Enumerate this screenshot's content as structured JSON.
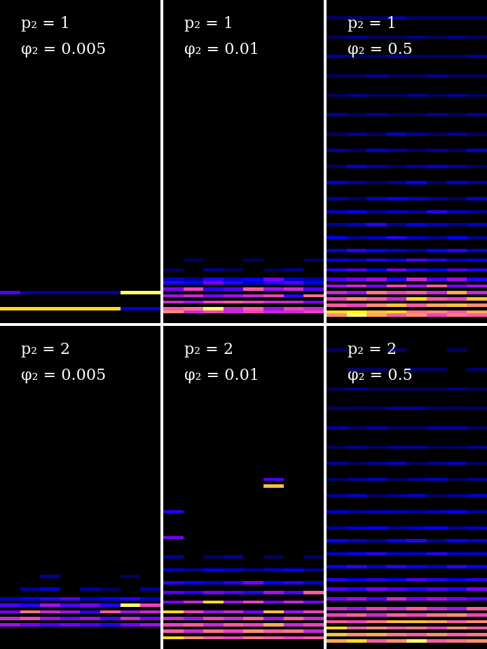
{
  "chart_data": [
    {
      "type": "heatmap",
      "annotations": [
        "p₂ = 1",
        "φ₂ = 0.005"
      ],
      "columns": 8,
      "rows": 100,
      "color_range": [
        0,
        1
      ],
      "tick_labels": false,
      "cells": [
        {
          "row": 4,
          "values": [
            0.85,
            0.85,
            0.85,
            0.85,
            0.85,
            0.85,
            0.2,
            0.2
          ]
        },
        {
          "row": 9,
          "values": [
            0.35,
            0.15,
            0.15,
            0.15,
            0.15,
            0.15,
            0.95,
            0.95
          ]
        }
      ]
    },
    {
      "type": "heatmap",
      "annotations": [
        "p₂ = 1",
        "φ₂ = 0.01"
      ],
      "columns": 8,
      "rows": 100,
      "color_range": [
        0,
        1
      ],
      "tick_labels": false,
      "cells": [
        {
          "row": 3,
          "values": [
            0.7,
            0.5,
            0.55,
            0.5,
            0.55,
            0.5,
            0.5,
            0.55
          ]
        },
        {
          "row": 4,
          "values": [
            0.6,
            0.65,
            0.95,
            0.5,
            0.6,
            0.45,
            0.55,
            0.5
          ]
        },
        {
          "row": 6,
          "values": [
            0.5,
            0.45,
            0.55,
            0.6,
            0.55,
            0.5,
            0.5,
            0.4
          ]
        },
        {
          "row": 8,
          "values": [
            0.45,
            0.5,
            0.4,
            0.45,
            0.5,
            0.55,
            0.3,
            0.65
          ]
        },
        {
          "row": 10,
          "values": [
            0.4,
            0.55,
            0.3,
            0.35,
            0.6,
            0.45,
            0.5,
            0.35
          ]
        },
        {
          "row": 12,
          "values": [
            0.3,
            0.25,
            0.4,
            0.3,
            0.2,
            0.3,
            0.35,
            0.25
          ]
        },
        {
          "row": 13,
          "values": [
            0.2,
            0.15,
            0.3,
            0.2,
            0.25,
            0.4,
            0.2,
            0.15
          ]
        },
        {
          "row": 16,
          "values": [
            0.1,
            0.0,
            0.15,
            0.1,
            0.0,
            0.1,
            0.15,
            0.0
          ]
        },
        {
          "row": 19,
          "values": [
            0.0,
            0.1,
            0.0,
            0.0,
            0.1,
            0.0,
            0.0,
            0.1
          ]
        }
      ]
    },
    {
      "type": "heatmap",
      "annotations": [
        "p₂ = 1",
        "φ₂ = 0.5"
      ],
      "columns": 8,
      "rows": 100,
      "color_range": [
        0,
        1
      ],
      "tick_labels": false,
      "cells": [
        {
          "row": 2,
          "values": [
            0.7,
            0.95,
            0.75,
            0.6,
            0.7,
            0.55,
            0.65,
            0.6
          ]
        },
        {
          "row": 3,
          "values": [
            0.85,
            0.9,
            0.8,
            0.85,
            0.65,
            0.7,
            0.6,
            0.75
          ]
        },
        {
          "row": 5,
          "values": [
            0.6,
            0.55,
            0.7,
            0.8,
            0.6,
            0.75,
            0.8,
            0.7
          ]
        },
        {
          "row": 7,
          "values": [
            0.55,
            0.7,
            0.6,
            0.5,
            0.85,
            0.6,
            0.55,
            0.8
          ]
        },
        {
          "row": 9,
          "values": [
            0.5,
            0.45,
            0.65,
            0.55,
            0.6,
            0.5,
            0.75,
            0.5
          ]
        },
        {
          "row": 11,
          "values": [
            0.45,
            0.5,
            0.4,
            0.55,
            0.45,
            0.6,
            0.4,
            0.45
          ]
        },
        {
          "row": 13,
          "values": [
            0.35,
            0.4,
            0.45,
            0.3,
            0.5,
            0.35,
            0.45,
            0.3
          ]
        },
        {
          "row": 16,
          "values": [
            0.3,
            0.35,
            0.25,
            0.4,
            0.3,
            0.25,
            0.35,
            0.3
          ]
        },
        {
          "row": 19,
          "values": [
            0.25,
            0.2,
            0.3,
            0.25,
            0.35,
            0.3,
            0.2,
            0.25
          ]
        },
        {
          "row": 22,
          "values": [
            0.2,
            0.3,
            0.25,
            0.2,
            0.15,
            0.25,
            0.3,
            0.2
          ]
        },
        {
          "row": 26,
          "values": [
            0.25,
            0.15,
            0.2,
            0.3,
            0.2,
            0.15,
            0.25,
            0.15
          ]
        },
        {
          "row": 30,
          "values": [
            0.15,
            0.2,
            0.3,
            0.15,
            0.25,
            0.2,
            0.15,
            0.2
          ]
        },
        {
          "row": 34,
          "values": [
            0.2,
            0.25,
            0.15,
            0.2,
            0.15,
            0.3,
            0.2,
            0.15
          ]
        },
        {
          "row": 38,
          "values": [
            0.15,
            0.1,
            0.2,
            0.25,
            0.2,
            0.15,
            0.1,
            0.2
          ]
        },
        {
          "row": 43,
          "values": [
            0.2,
            0.15,
            0.1,
            0.15,
            0.25,
            0.1,
            0.2,
            0.15
          ]
        },
        {
          "row": 48,
          "values": [
            0.1,
            0.2,
            0.15,
            0.1,
            0.15,
            0.2,
            0.15,
            0.1
          ]
        },
        {
          "row": 53,
          "values": [
            0.15,
            0.1,
            0.2,
            0.15,
            0.1,
            0.15,
            0.1,
            0.2
          ]
        },
        {
          "row": 58,
          "values": [
            0.1,
            0.15,
            0.1,
            0.2,
            0.15,
            0.1,
            0.15,
            0.1
          ]
        },
        {
          "row": 64,
          "values": [
            0.15,
            0.1,
            0.15,
            0.1,
            0.1,
            0.15,
            0.1,
            0.15
          ]
        },
        {
          "row": 70,
          "values": [
            0.1,
            0.15,
            0.1,
            0.1,
            0.15,
            0.1,
            0.15,
            0.1
          ]
        },
        {
          "row": 76,
          "values": [
            0.1,
            0.1,
            0.15,
            0.1,
            0.1,
            0.15,
            0.1,
            0.1
          ]
        },
        {
          "row": 82,
          "values": [
            0.15,
            0.1,
            0.1,
            0.15,
            0.1,
            0.1,
            0.1,
            0.15
          ]
        },
        {
          "row": 88,
          "values": [
            0.1,
            0.15,
            0.1,
            0.1,
            0.15,
            0.1,
            0.15,
            0.1
          ]
        },
        {
          "row": 94,
          "values": [
            0.1,
            0.1,
            0.1,
            0.15,
            0.1,
            0.1,
            0.1,
            0.1
          ]
        }
      ]
    },
    {
      "type": "heatmap",
      "annotations": [
        "p₂ = 2",
        "φ₂ = 0.005"
      ],
      "columns": 8,
      "rows": 100,
      "color_range": [
        0,
        1
      ],
      "tick_labels": false,
      "cells": [
        {
          "row": 7,
          "values": [
            0.45,
            0.4,
            0.35,
            0.4,
            0.35,
            0.3,
            0.4,
            0.45
          ]
        },
        {
          "row": 9,
          "values": [
            0.5,
            0.55,
            0.45,
            0.4,
            0.45,
            0.35,
            0.5,
            0.4
          ]
        },
        {
          "row": 11,
          "values": [
            0.4,
            0.65,
            0.5,
            0.45,
            0.3,
            0.6,
            0.45,
            0.5
          ]
        },
        {
          "row": 13,
          "values": [
            0.35,
            0.3,
            0.45,
            0.35,
            0.4,
            0.3,
            0.95,
            0.55
          ]
        },
        {
          "row": 15,
          "values": [
            0.2,
            0.25,
            0.3,
            0.35,
            0.2,
            0.25,
            0.3,
            0.2
          ]
        },
        {
          "row": 18,
          "values": [
            0.0,
            0.15,
            0.2,
            0.0,
            0.15,
            0.1,
            0.0,
            0.15
          ]
        },
        {
          "row": 22,
          "values": [
            0.0,
            0.0,
            0.15,
            0.0,
            0.0,
            0.0,
            0.1,
            0.0
          ]
        }
      ]
    },
    {
      "type": "heatmap",
      "annotations": [
        "p₂ = 2",
        "φ₂ = 0.01"
      ],
      "columns": 8,
      "rows": 100,
      "color_range": [
        0,
        1
      ],
      "tick_labels": false,
      "cells": [
        {
          "row": 3,
          "values": [
            0.85,
            0.7,
            0.6,
            0.55,
            0.65,
            0.6,
            0.55,
            0.6
          ]
        },
        {
          "row": 5,
          "values": [
            0.6,
            0.5,
            0.65,
            0.55,
            0.7,
            0.6,
            0.65,
            0.5
          ]
        },
        {
          "row": 7,
          "values": [
            0.55,
            0.6,
            0.5,
            0.6,
            0.55,
            0.75,
            0.5,
            0.55
          ]
        },
        {
          "row": 9,
          "values": [
            0.5,
            0.45,
            0.55,
            0.5,
            0.6,
            0.45,
            0.6,
            0.5
          ]
        },
        {
          "row": 11,
          "values": [
            0.85,
            0.55,
            0.45,
            0.5,
            0.4,
            0.8,
            0.45,
            0.55
          ]
        },
        {
          "row": 14,
          "values": [
            0.4,
            0.5,
            0.85,
            0.45,
            0.55,
            0.4,
            0.5,
            0.4
          ]
        },
        {
          "row": 17,
          "values": [
            0.35,
            0.3,
            0.4,
            0.35,
            0.3,
            0.45,
            0.35,
            0.6
          ]
        },
        {
          "row": 20,
          "values": [
            0.3,
            0.25,
            0.2,
            0.3,
            0.4,
            0.25,
            0.3,
            0.2
          ]
        },
        {
          "row": 24,
          "values": [
            0.2,
            0.15,
            0.25,
            0.2,
            0.15,
            0.2,
            0.25,
            0.15
          ]
        },
        {
          "row": 28,
          "values": [
            0.15,
            0.0,
            0.1,
            0.15,
            0.0,
            0.1,
            0.0,
            0.1
          ]
        },
        {
          "row": 34,
          "values": [
            0.4,
            0.0,
            0.0,
            0.0,
            0.0,
            0.0,
            0.0,
            0.0
          ]
        },
        {
          "row": 42,
          "values": [
            0.3,
            0.0,
            0.0,
            0.0,
            0.0,
            0.0,
            0.0,
            0.0
          ]
        },
        {
          "row": 50,
          "values": [
            0.0,
            0.0,
            0.0,
            0.0,
            0.0,
            0.8,
            0.0,
            0.0
          ]
        },
        {
          "row": 52,
          "values": [
            0.0,
            0.0,
            0.0,
            0.0,
            0.0,
            0.35,
            0.0,
            0.0
          ]
        }
      ]
    },
    {
      "type": "heatmap",
      "annotations": [
        "p₂ = 2",
        "φ₂ = 0.5"
      ],
      "columns": 8,
      "rows": 100,
      "color_range": [
        0,
        1
      ],
      "tick_labels": false,
      "cells": [
        {
          "row": 2,
          "values": [
            0.75,
            0.85,
            0.6,
            0.7,
            0.95,
            0.6,
            0.65,
            0.7
          ]
        },
        {
          "row": 4,
          "values": [
            0.8,
            0.7,
            0.75,
            0.65,
            0.6,
            0.7,
            0.6,
            0.65
          ]
        },
        {
          "row": 6,
          "values": [
            0.85,
            0.6,
            0.7,
            0.6,
            0.65,
            0.55,
            0.7,
            0.6
          ]
        },
        {
          "row": 8,
          "values": [
            0.6,
            0.55,
            0.65,
            0.8,
            0.8,
            0.75,
            0.6,
            0.7
          ]
        },
        {
          "row": 10,
          "values": [
            0.55,
            0.6,
            0.5,
            0.6,
            0.55,
            0.65,
            0.7,
            0.55
          ]
        },
        {
          "row": 12,
          "values": [
            0.5,
            0.45,
            0.55,
            0.5,
            0.6,
            0.5,
            0.45,
            0.6
          ]
        },
        {
          "row": 15,
          "values": [
            0.4,
            0.45,
            0.35,
            0.5,
            0.4,
            0.45,
            0.4,
            0.35
          ]
        },
        {
          "row": 18,
          "values": [
            0.35,
            0.3,
            0.4,
            0.35,
            0.3,
            0.35,
            0.3,
            0.4
          ]
        },
        {
          "row": 21,
          "values": [
            0.3,
            0.25,
            0.3,
            0.25,
            0.35,
            0.3,
            0.25,
            0.3
          ]
        },
        {
          "row": 25,
          "values": [
            0.25,
            0.3,
            0.2,
            0.3,
            0.25,
            0.2,
            0.3,
            0.25
          ]
        },
        {
          "row": 29,
          "values": [
            0.2,
            0.25,
            0.3,
            0.2,
            0.2,
            0.3,
            0.2,
            0.2
          ]
        },
        {
          "row": 33,
          "values": [
            0.25,
            0.2,
            0.15,
            0.25,
            0.3,
            0.15,
            0.25,
            0.2
          ]
        },
        {
          "row": 37,
          "values": [
            0.15,
            0.2,
            0.25,
            0.15,
            0.2,
            0.25,
            0.15,
            0.2
          ]
        },
        {
          "row": 42,
          "values": [
            0.2,
            0.15,
            0.2,
            0.2,
            0.15,
            0.2,
            0.25,
            0.15
          ]
        },
        {
          "row": 47,
          "values": [
            0.15,
            0.2,
            0.1,
            0.15,
            0.2,
            0.1,
            0.15,
            0.2
          ]
        },
        {
          "row": 52,
          "values": [
            0.1,
            0.15,
            0.2,
            0.1,
            0.15,
            0.2,
            0.1,
            0.15
          ]
        },
        {
          "row": 57,
          "values": [
            0.15,
            0.1,
            0.15,
            0.2,
            0.1,
            0.15,
            0.2,
            0.1
          ]
        },
        {
          "row": 62,
          "values": [
            0.1,
            0.15,
            0.1,
            0.15,
            0.15,
            0.1,
            0.1,
            0.15
          ]
        },
        {
          "row": 68,
          "values": [
            0.15,
            0.1,
            0.15,
            0.1,
            0.1,
            0.15,
            0.15,
            0.1
          ]
        },
        {
          "row": 74,
          "values": [
            0.1,
            0.1,
            0.1,
            0.15,
            0.15,
            0.1,
            0.1,
            0.1
          ]
        },
        {
          "row": 80,
          "values": [
            0.1,
            0.15,
            0.1,
            0.1,
            0.1,
            0.1,
            0.15,
            0.1
          ]
        },
        {
          "row": 86,
          "values": [
            0.0,
            0.1,
            0.1,
            0.0,
            0.1,
            0.1,
            0.0,
            0.1
          ]
        },
        {
          "row": 92,
          "values": [
            0.1,
            0.0,
            0.0,
            0.1,
            0.0,
            0.0,
            0.1,
            0.0
          ]
        }
      ]
    }
  ]
}
